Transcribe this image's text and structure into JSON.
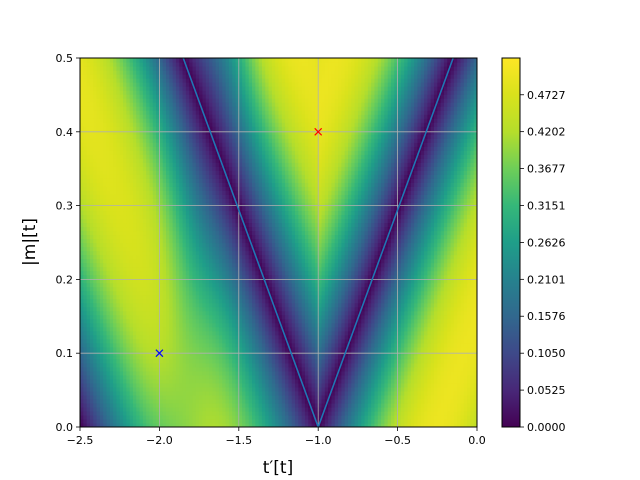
{
  "chart_data": {
    "type": "heatmap",
    "xlabel": "t′[t]",
    "ylabel": "|m|[t]",
    "xlim": [
      -2.5,
      0.0
    ],
    "ylim": [
      0.0,
      0.5
    ],
    "x_ticks": [
      "−2.5",
      "−2.0",
      "−1.5",
      "−1.0",
      "−0.5",
      "0.0"
    ],
    "x_tick_values": [
      -2.5,
      -2.0,
      -1.5,
      -1.0,
      -0.5,
      0.0
    ],
    "y_ticks": [
      "0.0",
      "0.1",
      "0.2",
      "0.3",
      "0.4",
      "0.5"
    ],
    "y_tick_values": [
      0.0,
      0.1,
      0.2,
      0.3,
      0.4,
      0.5
    ],
    "grid": true,
    "colormap": "viridis",
    "colorbar": {
      "range": [
        0.0,
        0.525
      ],
      "ticks": [
        "0.0000",
        "0.0525",
        "0.1050",
        "0.1576",
        "0.2101",
        "0.2626",
        "0.3151",
        "0.3677",
        "0.4202",
        "0.4727"
      ],
      "tick_values": [
        0.0,
        0.0525,
        0.105,
        0.1576,
        0.2101,
        0.2626,
        0.3151,
        0.3677,
        0.4202,
        0.4727
      ]
    },
    "lines": [
      {
        "color": "#1f77b4",
        "x": [
          -1.85,
          -1.0,
          -0.15
        ],
        "y": [
          0.5,
          0.0,
          0.5
        ]
      }
    ],
    "markers": [
      {
        "x": -1.0,
        "y": 0.4,
        "color": "#ff0000",
        "symbol": "x"
      },
      {
        "x": -2.0,
        "y": 0.1,
        "color": "#0000ff",
        "symbol": "x"
      }
    ]
  }
}
